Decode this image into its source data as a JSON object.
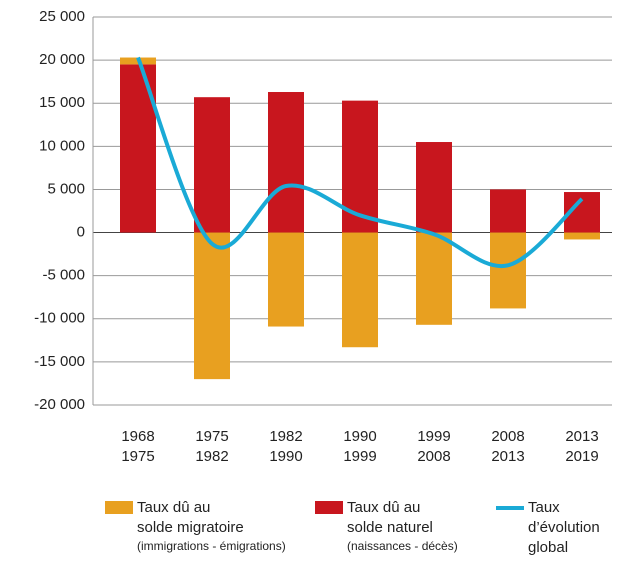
{
  "chart_data": {
    "type": "bar",
    "categories": [
      [
        "1968",
        "1975"
      ],
      [
        "1975",
        "1982"
      ],
      [
        "1982",
        "1990"
      ],
      [
        "1990",
        "1999"
      ],
      [
        "1999",
        "2008"
      ],
      [
        "2008",
        "2013"
      ],
      [
        "2013",
        "2019"
      ]
    ],
    "series": [
      {
        "name": [
          "Taux dû au",
          "solde naturel"
        ],
        "note": "(naissances - décès)",
        "color": "#c8161e",
        "values": [
          19500,
          15700,
          16300,
          15300,
          10500,
          5000,
          4700
        ]
      },
      {
        "name": [
          "Taux dû au",
          "solde migratoire"
        ],
        "note": "(immigrations - émigrations)",
        "color": "#e8a020",
        "values": [
          800,
          -17000,
          -10900,
          -13300,
          -10700,
          -8800,
          -800
        ]
      },
      {
        "type": "line",
        "name": [
          "Taux",
          "d’évolution",
          "global"
        ],
        "color": "#1aaad6",
        "values": [
          20300,
          -1300,
          5400,
          2000,
          -200,
          -3800,
          3900
        ]
      }
    ],
    "ylim": [
      -20000,
      25000
    ],
    "yticks": [
      {
        "value": -20000,
        "label": "-20 000"
      },
      {
        "value": -15000,
        "label": "-15 000"
      },
      {
        "value": -10000,
        "label": "-10 000"
      },
      {
        "value": -5000,
        "label": "-5 000"
      },
      0,
      {
        "value": 5000,
        "label": "5 000"
      },
      {
        "value": 10000,
        "label": "10 000"
      },
      {
        "value": 15000,
        "label": "15 000"
      },
      {
        "value": 20000,
        "label": "20 000"
      },
      {
        "value": 25000,
        "label": "25 000"
      }
    ],
    "grid": true
  }
}
